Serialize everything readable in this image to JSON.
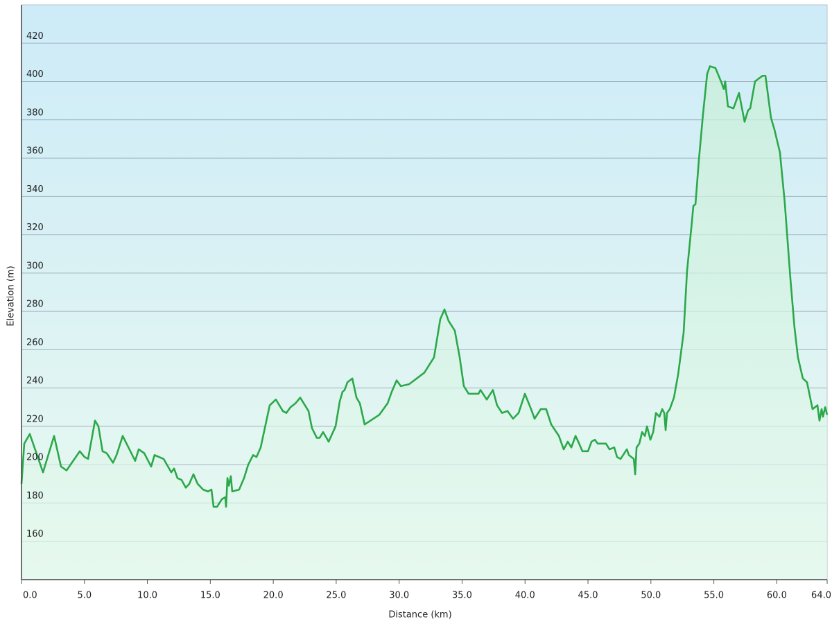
{
  "chart_data": {
    "type": "area",
    "xlabel": "Distance  (km)",
    "ylabel": "Elevation (m)",
    "color": "#2ba84a",
    "grid": true,
    "xlim": [
      0,
      64
    ],
    "ylim": [
      140,
      440
    ],
    "xticks": [
      {
        "value": 0,
        "label": "0.0"
      },
      {
        "value": 5,
        "label": "5.0"
      },
      {
        "value": 10,
        "label": "10.0"
      },
      {
        "value": 15,
        "label": "15.0"
      },
      {
        "value": 20,
        "label": "20.0"
      },
      {
        "value": 25,
        "label": "25.0"
      },
      {
        "value": 30,
        "label": "30.0"
      },
      {
        "value": 35,
        "label": "35.0"
      },
      {
        "value": 40,
        "label": "40.0"
      },
      {
        "value": 45,
        "label": "45.0"
      },
      {
        "value": 50,
        "label": "50.0"
      },
      {
        "value": 55,
        "label": "55.0"
      },
      {
        "value": 60,
        "label": "60.0"
      },
      {
        "value": 64,
        "label": "64.0"
      }
    ],
    "yticks": [
      160,
      180,
      200,
      220,
      240,
      260,
      280,
      300,
      320,
      340,
      360,
      380,
      400,
      420
    ],
    "x": [
      0,
      0.22,
      0.66,
      1.71,
      2.59,
      3.14,
      3.58,
      4.63,
      5.01,
      5.29,
      5.84,
      6.11,
      6.44,
      6.77,
      7.27,
      7.55,
      8.04,
      9.03,
      9.31,
      9.75,
      10.3,
      10.57,
      11.29,
      11.9,
      12.12,
      12.39,
      12.72,
      13.05,
      13.33,
      13.66,
      13.99,
      14.43,
      14.82,
      15.09,
      15.26,
      15.53,
      15.92,
      16.19,
      16.25,
      16.36,
      16.47,
      16.63,
      16.74,
      17.29,
      17.68,
      18.01,
      18.4,
      18.67,
      19.0,
      19.72,
      20.21,
      20.76,
      21.04,
      21.37,
      21.76,
      22.14,
      22.8,
      23.08,
      23.46,
      23.68,
      23.96,
      24.4,
      24.95,
      25.28,
      25.5,
      25.67,
      25.89,
      26.28,
      26.61,
      26.88,
      27.26,
      28.42,
      29.08,
      29.41,
      29.8,
      30.13,
      30.79,
      32.0,
      32.77,
      33.27,
      33.6,
      33.93,
      34.42,
      34.81,
      35.14,
      35.52,
      36.3,
      36.46,
      36.96,
      37.45,
      37.78,
      38.17,
      38.61,
      39.05,
      39.49,
      39.99,
      40.48,
      40.76,
      41.25,
      41.68,
      42.08,
      42.69,
      43.07,
      43.4,
      43.68,
      44.01,
      44.23,
      44.56,
      45.0,
      45.28,
      45.55,
      45.77,
      46.43,
      46.71,
      47.09,
      47.31,
      47.59,
      48.09,
      48.25,
      48.64,
      48.75,
      48.86,
      49.08,
      49.3,
      49.52,
      49.69,
      49.96,
      50.18,
      50.4,
      50.68,
      50.9,
      51.06,
      51.17,
      51.28,
      51.5,
      51.83,
      52.16,
      52.6,
      52.87,
      53.26,
      53.37,
      53.54,
      53.81,
      54.14,
      54.47,
      54.69,
      55.13,
      55.63,
      55.79,
      55.9,
      56.12,
      56.56,
      57.0,
      57.44,
      57.72,
      57.89,
      58.27,
      58.66,
      58.88,
      59.1,
      59.54,
      59.81,
      60.25,
      60.63,
      61.07,
      61.4,
      61.68,
      62.07,
      62.4,
      62.84,
      63.23,
      63.39,
      63.56,
      63.67,
      63.84,
      64.0
    ],
    "values": [
      190,
      211,
      216,
      196,
      215,
      199,
      197,
      207,
      204,
      203,
      223,
      220,
      207,
      206,
      201,
      205,
      215,
      202,
      208,
      206,
      199,
      205,
      203,
      196,
      198,
      193,
      192,
      188,
      190,
      195,
      190,
      187,
      186,
      187,
      178,
      178,
      182,
      183,
      178,
      193,
      189,
      194,
      186,
      187,
      193,
      200,
      205,
      204,
      209,
      231,
      234,
      228,
      227,
      230,
      232,
      235,
      228,
      219,
      214,
      214,
      217,
      212,
      220,
      233,
      238,
      239,
      243,
      245,
      235,
      232,
      221,
      226,
      232,
      238,
      244,
      241,
      242,
      248,
      256,
      276,
      281,
      275,
      270,
      256,
      241,
      237,
      237,
      239,
      234,
      239,
      231,
      227,
      228,
      224,
      227,
      237,
      229,
      224,
      229,
      229,
      221,
      215,
      208,
      212,
      209,
      215,
      212,
      207,
      207,
      212,
      213,
      211,
      211,
      208,
      209,
      204,
      203,
      208,
      205,
      203,
      195,
      209,
      211,
      217,
      215,
      220,
      213,
      217,
      227,
      225,
      229,
      227,
      218,
      227,
      229,
      235,
      247,
      269,
      301,
      327,
      335,
      336,
      359,
      383,
      404,
      408,
      407,
      399,
      396,
      400,
      387,
      386,
      394,
      379,
      385,
      386,
      400,
      402,
      403,
      403,
      381,
      375,
      363,
      337,
      298,
      272,
      256,
      245,
      243,
      229,
      231,
      223,
      229,
      225,
      230,
      226
    ]
  }
}
